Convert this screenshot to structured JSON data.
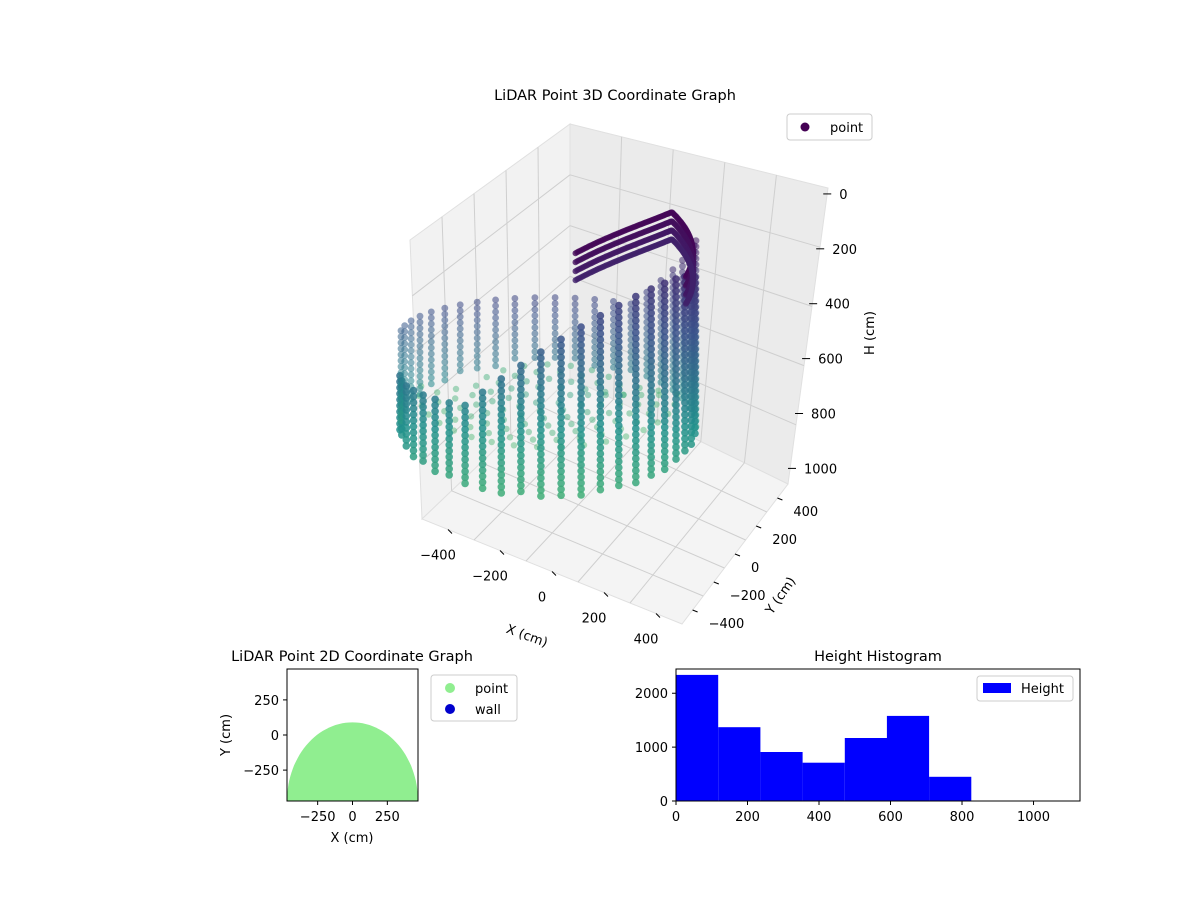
{
  "colors": {
    "viridis_low": "#440154",
    "viridis_mid": "#21918c",
    "viridis_high": "#5ec962",
    "point_2d": "#90ee90",
    "wall_2d": "#0000cd",
    "histogram": "#0000ff"
  },
  "chart_data": [
    {
      "type": "scatter",
      "title": "LiDAR Point 3D Coordinate Graph",
      "xlabel": "X (cm)",
      "ylabel": "Y (cm)",
      "zlabel": "H (cm)",
      "xlim": [
        -500,
        500
      ],
      "ylim": [
        -500,
        500
      ],
      "zlim": [
        0,
        1100
      ],
      "x_ticks": [
        "−400",
        "−200",
        "0",
        "200",
        "400"
      ],
      "y_ticks": [
        "−400",
        "−200",
        "0",
        "200",
        "400"
      ],
      "z_ticks": [
        "0",
        "200",
        "400",
        "600",
        "800",
        "1000"
      ],
      "z_inverted": true,
      "legend": {
        "entries": [
          "point"
        ],
        "placement": "top-right"
      },
      "colormap": "viridis",
      "grid": true
    },
    {
      "type": "scatter",
      "title": "LiDAR Point 2D Coordinate Graph",
      "xlabel": "X (cm)",
      "ylabel": "Y (cm)",
      "xlim": [
        -470,
        470
      ],
      "ylim": [
        -470,
        470
      ],
      "x_ticks": [
        "−250",
        "0",
        "250"
      ],
      "y_ticks": [
        "250",
        "0",
        "−250"
      ],
      "legend": {
        "entries": [
          "point",
          "wall"
        ],
        "placement": "outside-right"
      },
      "series": [
        {
          "name": "point",
          "shape": "filled upper half-disc, radius ≈ 470 cm, top near Y ≈ 90 cm"
        },
        {
          "name": "wall",
          "values": []
        }
      ]
    },
    {
      "type": "bar",
      "title": "Height Histogram",
      "xlabel": "",
      "ylabel": "",
      "xlim": [
        0,
        1130
      ],
      "ylim": [
        0,
        2450
      ],
      "x_ticks": [
        "0",
        "200",
        "400",
        "600",
        "800",
        "1000"
      ],
      "y_ticks": [
        "0",
        "1000",
        "2000"
      ],
      "legend": {
        "entries": [
          "Height"
        ],
        "placement": "top-right"
      },
      "bins": [
        {
          "start": 0,
          "end": 118,
          "count": 2340
        },
        {
          "start": 118,
          "end": 236,
          "count": 1370
        },
        {
          "start": 236,
          "end": 354,
          "count": 910
        },
        {
          "start": 354,
          "end": 472,
          "count": 710
        },
        {
          "start": 472,
          "end": 590,
          "count": 1170
        },
        {
          "start": 590,
          "end": 708,
          "count": 1580
        },
        {
          "start": 708,
          "end": 826,
          "count": 450
        }
      ]
    }
  ]
}
